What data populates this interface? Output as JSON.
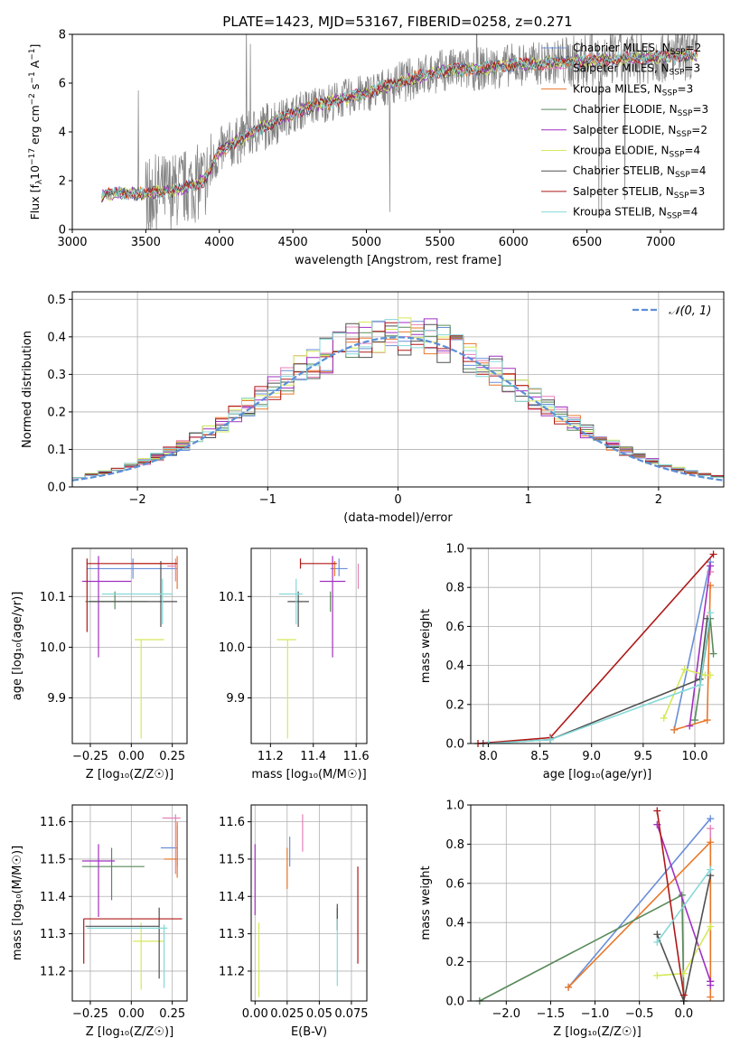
{
  "title": "PLATE=1423, MJD=53167, FIBERID=0258, z=0.271",
  "models": [
    {
      "label": "Chabrier MILES, N",
      "sub": "SSP",
      "suffix": "=2",
      "color": "#6a8fd8"
    },
    {
      "label": "Salpeter MILES, N",
      "sub": "SSP",
      "suffix": "=3",
      "color": "#e581b8"
    },
    {
      "label": "Kroupa MILES, N",
      "sub": "SSP",
      "suffix": "=3",
      "color": "#e8772a"
    },
    {
      "label": "Chabrier ELODIE, N",
      "sub": "SSP",
      "suffix": "=3",
      "color": "#5a8a5a"
    },
    {
      "label": "Salpeter ELODIE, N",
      "sub": "SSP",
      "suffix": "=2",
      "color": "#a030c0"
    },
    {
      "label": "Kroupa ELODIE, N",
      "sub": "SSP",
      "suffix": "=4",
      "color": "#d6e85a"
    },
    {
      "label": "Chabrier STELIB, N",
      "sub": "SSP",
      "suffix": "=4",
      "color": "#505050"
    },
    {
      "label": "Salpeter STELIB, N",
      "sub": "SSP",
      "suffix": "=3",
      "color": "#b01818"
    },
    {
      "label": "Kroupa STELIB, N",
      "sub": "SSP",
      "suffix": "=4",
      "color": "#86d8d8"
    }
  ],
  "chart_data": [
    {
      "id": "spectrum",
      "type": "line",
      "xlabel": "wavelength [Angstrom, rest frame]",
      "ylabel_parts": {
        "a": "Flux [f",
        "sub": "λ",
        "b": "10",
        "sup": "−17",
        "c": " erg cm",
        "sup2": "−2",
        "d": " s",
        "sup3": "−1",
        "e": " A",
        "sup4": "−1",
        "f": "]"
      },
      "xlim": [
        3000,
        7430
      ],
      "ylim": [
        0,
        8
      ],
      "xticks": [
        3000,
        3500,
        4000,
        4500,
        5000,
        5500,
        6000,
        6500,
        7000
      ],
      "yticks": [
        0,
        2,
        4,
        6,
        8
      ],
      "data_color": "#808080",
      "continuum": {
        "x": [
          3200,
          3300,
          3500,
          3700,
          3900,
          4000,
          4200,
          4400,
          4600,
          4800,
          5000,
          5200,
          5500,
          5800,
          6000,
          6300,
          6600,
          6900,
          7200
        ],
        "y": [
          1.4,
          1.5,
          1.45,
          1.6,
          2.0,
          3.2,
          3.9,
          4.5,
          5.0,
          5.3,
          5.6,
          6.0,
          6.5,
          6.6,
          6.75,
          6.85,
          6.95,
          7.05,
          7.15
        ]
      }
    },
    {
      "id": "residuals",
      "type": "histogram",
      "xlabel": "(data-model)/error",
      "ylabel": "Normed distribution",
      "xlim": [
        -2.5,
        2.5
      ],
      "ylim": [
        0,
        0.52
      ],
      "xticks": [
        -2,
        -1,
        0,
        1,
        2
      ],
      "yticks": [
        0.0,
        0.1,
        0.2,
        0.3,
        0.4,
        0.5
      ],
      "grid": true,
      "legend": "𝒩(0, 1)",
      "legend_position": "top-right",
      "bin_width": 0.1
    },
    {
      "id": "age-vs-Z",
      "type": "errorbar",
      "xlabel": "Z [log₁₀(Z/Z☉)]",
      "ylabel": "age  [log₁₀(age/yr)]",
      "xlim": [
        -0.36,
        0.34
      ],
      "ylim": [
        9.81,
        10.195
      ],
      "xticks": [
        -0.25,
        0.0,
        0.25
      ],
      "xticklabels": [
        "−0.25",
        "0.00",
        "0.25"
      ],
      "yticks": [
        9.9,
        10.0,
        10.1
      ],
      "yticklabels": [
        "9.9",
        "10.0",
        "10.1"
      ],
      "grid": true,
      "points": [
        {
          "m": 0,
          "x": 0.01,
          "y": 10.155,
          "xerr": [
            0.28,
            0.27
          ],
          "yerr": [
            0.02,
            0.02
          ]
        },
        {
          "m": 1,
          "x": 0.27,
          "y": 10.16,
          "xerr": [
            0.05,
            0.0
          ],
          "yerr": [
            0.03,
            0.015
          ]
        },
        {
          "m": 2,
          "x": 0.28,
          "y": 10.165,
          "xerr": [
            0.28,
            0.0
          ],
          "yerr": [
            0.05,
            0.015
          ]
        },
        {
          "m": 3,
          "x": -0.1,
          "y": 10.09,
          "xerr": [
            0.18,
            0.2
          ],
          "yerr": [
            0.015,
            0.02
          ]
        },
        {
          "m": 4,
          "x": -0.2,
          "y": 10.13,
          "xerr": [
            0.1,
            0.2
          ],
          "yerr": [
            0.15,
            0.05
          ]
        },
        {
          "m": 5,
          "x": 0.06,
          "y": 10.015,
          "xerr": [
            0.04,
            0.14
          ],
          "yerr": [
            0.195,
            0.0
          ]
        },
        {
          "m": 6,
          "x": 0.18,
          "y": 10.09,
          "xerr": [
            0.44,
            0.1
          ],
          "yerr": [
            0.05,
            0.08
          ]
        },
        {
          "m": 7,
          "x": -0.27,
          "y": 10.165,
          "xerr": [
            0.0,
            0.55
          ],
          "yerr": [
            0.135,
            0.01
          ]
        },
        {
          "m": 8,
          "x": 0.19,
          "y": 10.105,
          "xerr": [
            0.37,
            0.06
          ],
          "yerr": [
            0.06,
            0.03
          ]
        }
      ]
    },
    {
      "id": "age-vs-mass",
      "type": "errorbar",
      "xlabel": "mass [log₁₀(M/M☉)]",
      "xlim": [
        11.11,
        11.65
      ],
      "ylim": [
        9.81,
        10.195
      ],
      "xticks": [
        11.2,
        11.4,
        11.6
      ],
      "xticklabels": [
        "11.2",
        "11.4",
        "11.6"
      ],
      "yticks": [
        9.9,
        10.0,
        10.1
      ],
      "yticklabels": [
        "9.9",
        "10.0",
        "10.1"
      ],
      "grid": true,
      "points": [
        {
          "m": 0,
          "x": 11.52,
          "y": 10.155,
          "xerr": [
            0.04,
            0.04
          ],
          "yerr": [
            0.015,
            0.02
          ]
        },
        {
          "m": 1,
          "x": 11.61,
          "y": 10.155,
          "xerr": [
            0.0,
            0.0
          ],
          "yerr": [
            0.04,
            0.01
          ]
        },
        {
          "m": 2,
          "x": 11.5,
          "y": 10.16,
          "xerr": [
            0.0,
            0.0
          ],
          "yerr": [
            0.02,
            0.01
          ]
        },
        {
          "m": 3,
          "x": 11.48,
          "y": 10.09,
          "xerr": [
            0.0,
            0.0
          ],
          "yerr": [
            0.02,
            0.02
          ]
        },
        {
          "m": 4,
          "x": 11.49,
          "y": 10.13,
          "xerr": [
            0.06,
            0.06
          ],
          "yerr": [
            0.15,
            0.05
          ]
        },
        {
          "m": 5,
          "x": 11.28,
          "y": 10.015,
          "xerr": [
            0.05,
            0.04
          ],
          "yerr": [
            0.195,
            0.0
          ]
        },
        {
          "m": 6,
          "x": 11.33,
          "y": 10.09,
          "xerr": [
            0.05,
            0.05
          ],
          "yerr": [
            0.05,
            0.02
          ]
        },
        {
          "m": 7,
          "x": 11.34,
          "y": 10.165,
          "xerr": [
            0.0,
            0.17
          ],
          "yerr": [
            0.01,
            0.01
          ]
        },
        {
          "m": 8,
          "x": 11.32,
          "y": 10.105,
          "xerr": [
            0.08,
            0.03
          ],
          "yerr": [
            0.06,
            0.03
          ]
        }
      ]
    },
    {
      "id": "mass-weight-vs-age",
      "type": "line",
      "xlabel": "age  [log₁₀(age/yr)]",
      "ylabel": "mass weight",
      "xlim": [
        7.83,
        10.28
      ],
      "ylim": [
        0,
        1
      ],
      "xticks": [
        8.0,
        8.5,
        9.0,
        9.5,
        10.0
      ],
      "xticklabels": [
        "8.0",
        "8.5",
        "9.0",
        "9.5",
        "10.0"
      ],
      "yticks": [
        0,
        0.2,
        0.4,
        0.6,
        0.8,
        1.0
      ],
      "yticklabels": [
        "0.0",
        "0.2",
        "0.4",
        "0.6",
        "0.8",
        "1.0"
      ],
      "grid": true,
      "series": [
        {
          "m": 0,
          "x": [
            9.8,
            10.15
          ],
          "y": [
            0.07,
            0.93
          ]
        },
        {
          "m": 1,
          "x": [
            10.15
          ],
          "y": [
            0.88
          ]
        },
        {
          "m": 2,
          "x": [
            9.8,
            10.12,
            10.15
          ],
          "y": [
            0.07,
            0.12,
            0.81
          ]
        },
        {
          "m": 3,
          "x": [
            10.0,
            10.15,
            10.18
          ],
          "y": [
            0.12,
            0.64,
            0.46
          ]
        },
        {
          "m": 4,
          "x": [
            9.95,
            10.15
          ],
          "y": [
            0.09,
            0.91
          ]
        },
        {
          "m": 5,
          "x": [
            9.7,
            9.9,
            10.1,
            10.15
          ],
          "y": [
            0.13,
            0.38,
            0.35,
            0.35
          ]
        },
        {
          "m": 6,
          "x": [
            7.95,
            8.6,
            10.05,
            10.12
          ],
          "y": [
            0.0,
            0.02,
            0.33,
            0.64
          ]
        },
        {
          "m": 7,
          "x": [
            7.9,
            8.6,
            10.18
          ],
          "y": [
            0.0,
            0.03,
            0.97
          ]
        },
        {
          "m": 8,
          "x": [
            8.0,
            8.6,
            10.05,
            10.15
          ],
          "y": [
            0.0,
            0.02,
            0.3,
            0.67
          ]
        }
      ]
    },
    {
      "id": "mass-vs-Z",
      "type": "errorbar",
      "xlabel": "Z [log₁₀(Z/Z☉)]",
      "ylabel": "mass [log₁₀(M/M☉)]",
      "xlim": [
        -0.36,
        0.34
      ],
      "ylim": [
        11.12,
        11.645
      ],
      "xticks": [
        -0.25,
        0.0,
        0.25
      ],
      "xticklabels": [
        "−0.25",
        "0.00",
        "0.25"
      ],
      "yticks": [
        11.2,
        11.3,
        11.4,
        11.5,
        11.6
      ],
      "yticklabels": [
        "11.2",
        "11.3",
        "11.4",
        "11.5",
        "11.6"
      ],
      "grid": true,
      "points": [
        {
          "m": 0,
          "x": 0.28,
          "y": 11.53,
          "xerr": [
            0.1,
            0.0
          ],
          "yerr": [
            0.05,
            0.06
          ]
        },
        {
          "m": 1,
          "x": 0.27,
          "y": 11.61,
          "xerr": [
            0.08,
            0.03
          ],
          "yerr": [
            0.15,
            0.01
          ]
        },
        {
          "m": 2,
          "x": 0.28,
          "y": 11.5,
          "xerr": [
            0.08,
            0.0
          ],
          "yerr": [
            0.05,
            0.1
          ]
        },
        {
          "m": 3,
          "x": -0.12,
          "y": 11.48,
          "xerr": [
            0.18,
            0.2
          ],
          "yerr": [
            0.09,
            0.05
          ]
        },
        {
          "m": 4,
          "x": -0.2,
          "y": 11.495,
          "xerr": [
            0.1,
            0.1
          ],
          "yerr": [
            0.15,
            0.045
          ]
        },
        {
          "m": 5,
          "x": 0.06,
          "y": 11.28,
          "xerr": [
            0.05,
            0.14
          ],
          "yerr": [
            0.13,
            0.05
          ]
        },
        {
          "m": 6,
          "x": 0.17,
          "y": 11.32,
          "xerr": [
            0.45,
            0.0
          ],
          "yerr": [
            0.14,
            0.05
          ]
        },
        {
          "m": 7,
          "x": -0.29,
          "y": 11.34,
          "xerr": [
            0.0,
            0.6
          ],
          "yerr": [
            0.12,
            0.0
          ]
        },
        {
          "m": 8,
          "x": 0.2,
          "y": 11.315,
          "xerr": [
            0.47,
            0.02
          ],
          "yerr": [
            0.16,
            0.01
          ]
        }
      ]
    },
    {
      "id": "mass-vs-EBV",
      "type": "errorbar",
      "xlabel": "E(B-V)",
      "xlim": [
        -0.003,
        0.087
      ],
      "ylim": [
        11.12,
        11.645
      ],
      "xticks": [
        0.0,
        0.025,
        0.05,
        0.075
      ],
      "xticklabels": [
        "0.00",
        "0.025",
        "0.05",
        "0.075"
      ],
      "yticks": [
        11.2,
        11.3,
        11.4,
        11.5,
        11.6
      ],
      "yticklabels": [
        "11.2",
        "11.3",
        "11.4",
        "11.5",
        "11.6"
      ],
      "grid": true,
      "points": [
        {
          "m": 0,
          "x": 0.027,
          "y": 11.52,
          "xerr": [
            0,
            0
          ],
          "yerr": [
            0.04,
            0.04
          ]
        },
        {
          "m": 1,
          "x": 0.037,
          "y": 11.57,
          "xerr": [
            0,
            0
          ],
          "yerr": [
            0.05,
            0.05
          ]
        },
        {
          "m": 2,
          "x": 0.025,
          "y": 11.47,
          "xerr": [
            0,
            0
          ],
          "yerr": [
            0.05,
            0.06
          ]
        },
        {
          "m": 3,
          "x": 0.064,
          "y": 11.34,
          "xerr": [
            0,
            0
          ],
          "yerr": [
            0.03,
            0.03
          ]
        },
        {
          "m": 4,
          "x": 0.0,
          "y": 11.45,
          "xerr": [
            0,
            0
          ],
          "yerr": [
            0.1,
            0.09
          ]
        },
        {
          "m": 5,
          "x": 0.003,
          "y": 11.23,
          "xerr": [
            0,
            0
          ],
          "yerr": [
            0.1,
            0.1
          ]
        },
        {
          "m": 6,
          "x": 0.064,
          "y": 11.33,
          "xerr": [
            0,
            0
          ],
          "yerr": [
            0.02,
            0.05
          ]
        },
        {
          "m": 7,
          "x": 0.08,
          "y": 11.35,
          "xerr": [
            0,
            0
          ],
          "yerr": [
            0.13,
            0.13
          ]
        },
        {
          "m": 8,
          "x": 0.064,
          "y": 11.25,
          "xerr": [
            0,
            0
          ],
          "yerr": [
            0.09,
            0.09
          ]
        }
      ]
    },
    {
      "id": "mass-weight-vs-Z",
      "type": "line",
      "xlabel": "Z [log₁₀(Z/Z☉)]",
      "ylabel": "mass weight",
      "xlim": [
        -2.4,
        0.45
      ],
      "ylim": [
        0,
        1
      ],
      "xticks": [
        -2.0,
        -1.5,
        -1.0,
        -0.5,
        0.0
      ],
      "xticklabels": [
        "−2.0",
        "−1.5",
        "−1.0",
        "−0.5",
        "0.0"
      ],
      "yticks": [
        0,
        0.2,
        0.4,
        0.6,
        0.8,
        1.0
      ],
      "yticklabels": [
        "0.0",
        "0.2",
        "0.4",
        "0.6",
        "0.8",
        "1.0"
      ],
      "grid": true,
      "series": [
        {
          "m": 0,
          "x": [
            -1.3,
            0.3
          ],
          "y": [
            0.07,
            0.93
          ]
        },
        {
          "m": 1,
          "x": [
            0.3,
            0.3
          ],
          "y": [
            0.1,
            0.88
          ]
        },
        {
          "m": 2,
          "x": [
            -1.3,
            0.3,
            0.3
          ],
          "y": [
            0.07,
            0.81,
            0.02
          ]
        },
        {
          "m": 3,
          "x": [
            -2.3,
            -0.02,
            0.0
          ],
          "y": [
            0.0,
            0.54,
            0.0
          ]
        },
        {
          "m": 4,
          "x": [
            -0.3,
            0.3,
            0.3
          ],
          "y": [
            0.9,
            0.1,
            0.08
          ]
        },
        {
          "m": 5,
          "x": [
            -0.3,
            0.0,
            0.3
          ],
          "y": [
            0.13,
            0.14,
            0.38
          ]
        },
        {
          "m": 6,
          "x": [
            -0.3,
            0.0,
            0.3
          ],
          "y": [
            0.34,
            0.0,
            0.64
          ]
        },
        {
          "m": 7,
          "x": [
            -0.3,
            0.0
          ],
          "y": [
            0.97,
            0.03
          ]
        },
        {
          "m": 8,
          "x": [
            -0.3,
            0.3
          ],
          "y": [
            0.3,
            0.67
          ]
        }
      ]
    }
  ]
}
